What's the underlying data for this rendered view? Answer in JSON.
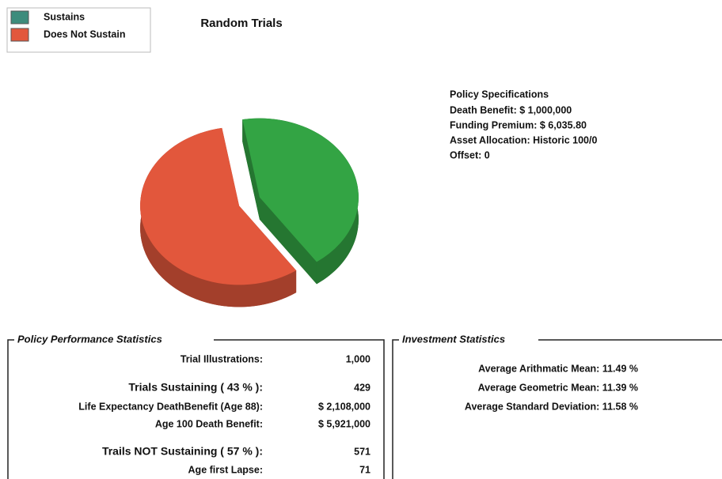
{
  "chart_data": {
    "type": "pie",
    "title": "Random Trials",
    "categories": [
      "Sustains",
      "Does Not Sustain"
    ],
    "values": [
      43,
      57
    ],
    "colors": [
      "#33a444",
      "#e2573c"
    ],
    "legend": "top-left"
  },
  "policy_specifications": {
    "title": "Policy Specifications",
    "lines": [
      "Death Benefit:  $ 1,000,000",
      "Funding Premium:  $ 6,035.80",
      "Asset Allocation: Historic 100/0",
      "Offset: 0"
    ]
  },
  "performance": {
    "title": "Policy Performance Statistics",
    "rows": [
      [
        "Trial Illustrations:",
        "1,000"
      ],
      [
        "Trials Sustaining ( 43 % ):",
        "429"
      ],
      [
        "Life Expectancy DeathBenefit (Age 88):",
        "$ 2,108,000"
      ],
      [
        "Age 100 Death Benefit:",
        "$ 5,921,000"
      ],
      [
        "Trails NOT Sustaining ( 57 % ):",
        "571"
      ],
      [
        "Age first Lapse:",
        "71"
      ]
    ]
  },
  "investment": {
    "title": "Investment Statistics",
    "rows": [
      "Average Arithmatic Mean: 11.49 %",
      "Average Geometric Mean: 11.39 %",
      "Average Standard Deviation: 11.58 %"
    ]
  }
}
